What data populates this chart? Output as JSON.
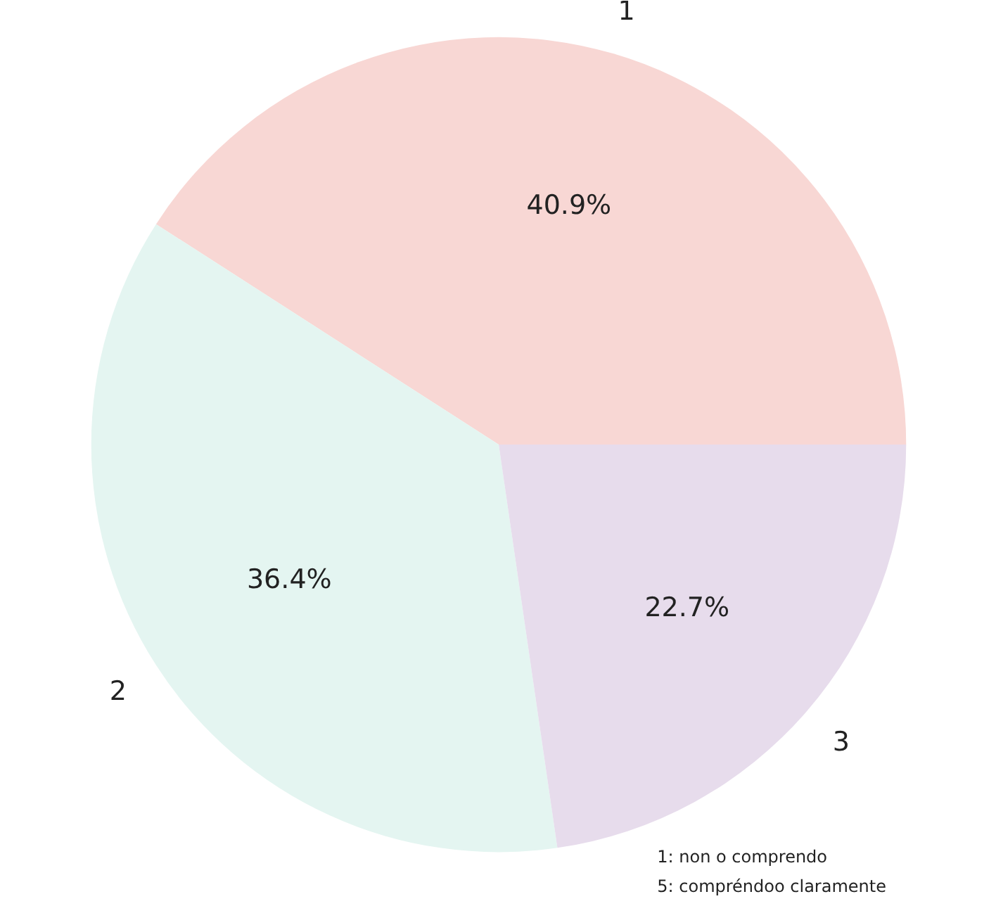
{
  "chart_data": {
    "type": "pie",
    "categories": [
      "1",
      "2",
      "3"
    ],
    "values": [
      40.9,
      36.4,
      22.7
    ],
    "colors": [
      "#f8d7d4",
      "#e4f5f1",
      "#e7dcec"
    ],
    "value_labels": [
      "40.9%",
      "36.4%",
      "22.7%"
    ],
    "annotations": [
      "1: non o comprendo",
      "5: compréndoo claramente"
    ]
  }
}
